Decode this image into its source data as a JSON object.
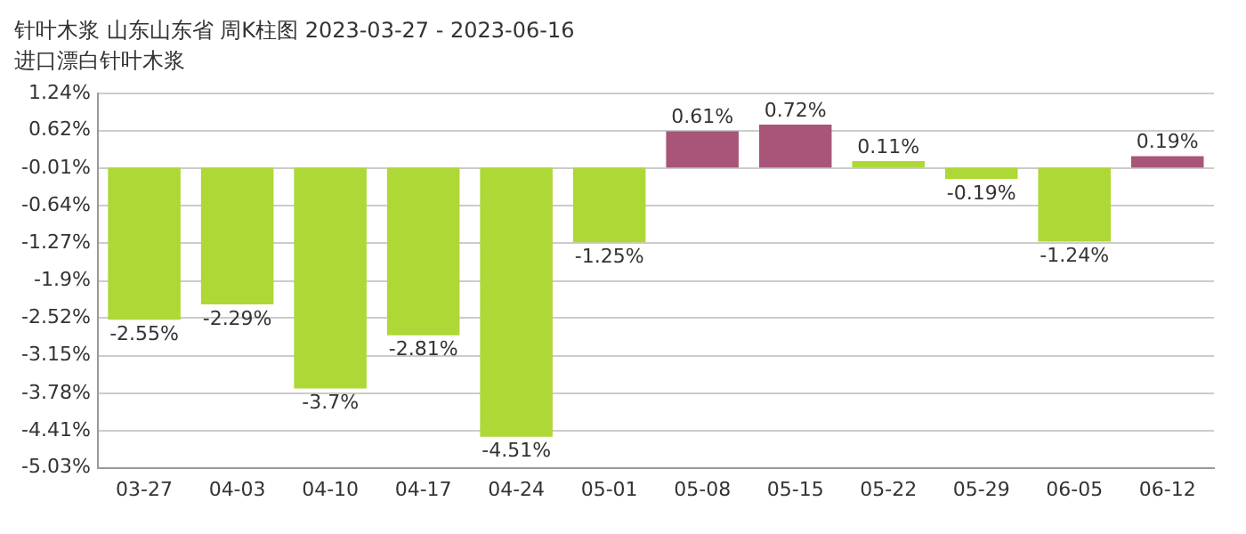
{
  "chart_data": {
    "type": "bar",
    "title": "针叶木浆 山东山东省 周K柱图 2023-03-27 - 2023-06-16",
    "subtitle": "进口漂白针叶木浆",
    "categories": [
      "03-27",
      "04-03",
      "04-10",
      "04-17",
      "04-24",
      "05-01",
      "05-08",
      "05-15",
      "05-22",
      "05-29",
      "06-05",
      "06-12"
    ],
    "values": [
      -2.55,
      -2.29,
      -3.7,
      -2.81,
      -4.51,
      -1.25,
      0.61,
      0.72,
      0.11,
      -0.19,
      -1.24,
      0.19
    ],
    "value_labels": [
      "-2.55%",
      "-2.29%",
      "-3.7%",
      "-2.81%",
      "-4.51%",
      "-1.25%",
      "0.61%",
      "0.72%",
      "0.11%",
      "-0.19%",
      "-1.24%",
      "0.19%"
    ],
    "colors": [
      "#add836",
      "#add836",
      "#add836",
      "#add836",
      "#add836",
      "#add836",
      "#a8557a",
      "#a8557a",
      "#add836",
      "#add836",
      "#add836",
      "#a8557a"
    ],
    "ylim": [
      -5.03,
      1.24
    ],
    "yticks": [
      {
        "value": 1.24,
        "label": "1.24%"
      },
      {
        "value": 0.62,
        "label": "0.62%"
      },
      {
        "value": -0.01,
        "label": "-0.01%"
      },
      {
        "value": -0.64,
        "label": "-0.64%"
      },
      {
        "value": -1.27,
        "label": "-1.27%"
      },
      {
        "value": -1.9,
        "label": "-1.9%"
      },
      {
        "value": -2.52,
        "label": "-2.52%"
      },
      {
        "value": -3.15,
        "label": "-3.15%"
      },
      {
        "value": -3.78,
        "label": "-3.78%"
      },
      {
        "value": -4.41,
        "label": "-4.41%"
      },
      {
        "value": -5.03,
        "label": "-5.03%"
      }
    ],
    "grid": "y",
    "legend": false
  }
}
